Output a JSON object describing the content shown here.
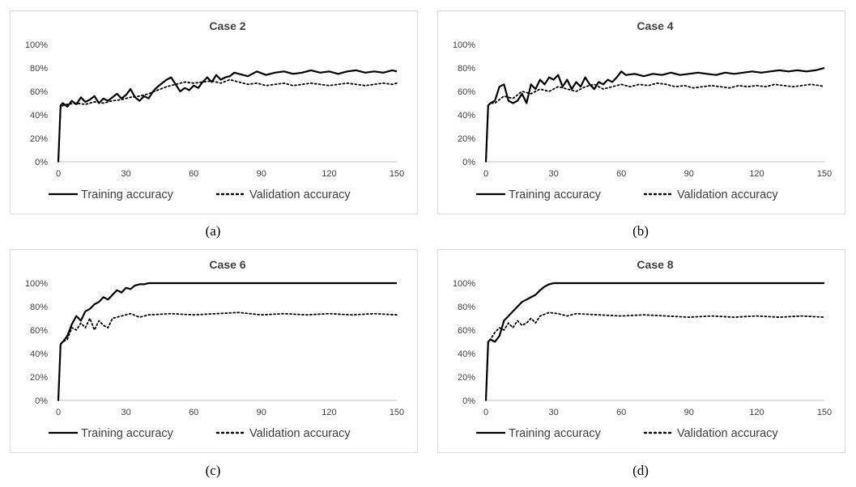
{
  "chart_data": [
    {
      "type": "line",
      "title": "Case 2",
      "caption": "(a)",
      "xlim": [
        0,
        150
      ],
      "ylim": [
        0,
        100
      ],
      "xticks": [
        0,
        30,
        60,
        90,
        120,
        150
      ],
      "yticks": [
        "0%",
        "20%",
        "40%",
        "60%",
        "80%",
        "100%"
      ],
      "legend_position": "bottom",
      "series": [
        {
          "name": "Training accuracy",
          "style": "solid",
          "x": [
            0,
            1,
            2,
            4,
            6,
            8,
            10,
            12,
            14,
            16,
            18,
            20,
            22,
            24,
            26,
            28,
            30,
            32,
            34,
            36,
            38,
            40,
            42,
            44,
            46,
            48,
            50,
            52,
            54,
            56,
            58,
            60,
            62,
            64,
            66,
            68,
            70,
            72,
            74,
            76,
            78,
            80,
            84,
            88,
            92,
            96,
            100,
            104,
            108,
            112,
            116,
            120,
            124,
            128,
            132,
            136,
            140,
            144,
            148,
            150
          ],
          "y": [
            0,
            48,
            50,
            47,
            52,
            49,
            55,
            51,
            53,
            56,
            50,
            54,
            52,
            55,
            58,
            54,
            57,
            62,
            55,
            52,
            56,
            54,
            60,
            64,
            67,
            70,
            72,
            66,
            60,
            63,
            61,
            65,
            63,
            68,
            72,
            68,
            74,
            70,
            72,
            73,
            76,
            75,
            73,
            77,
            74,
            76,
            77,
            75,
            76,
            78,
            76,
            77,
            75,
            77,
            78,
            76,
            77,
            76,
            78,
            77
          ]
        },
        {
          "name": "Validation accuracy",
          "style": "dotted",
          "x": [
            0,
            1,
            2,
            4,
            8,
            12,
            16,
            20,
            24,
            28,
            32,
            36,
            40,
            44,
            48,
            52,
            56,
            60,
            64,
            68,
            72,
            76,
            80,
            84,
            88,
            92,
            96,
            100,
            104,
            108,
            112,
            116,
            120,
            124,
            128,
            132,
            136,
            140,
            144,
            148,
            150
          ],
          "y": [
            0,
            46,
            48,
            49,
            50,
            49,
            51,
            50,
            52,
            53,
            55,
            56,
            58,
            61,
            64,
            66,
            68,
            67,
            68,
            69,
            67,
            70,
            68,
            66,
            67,
            65,
            66,
            67,
            65,
            66,
            67,
            66,
            65,
            66,
            67,
            66,
            65,
            66,
            67,
            66,
            67
          ]
        }
      ]
    },
    {
      "type": "line",
      "title": "Case 4",
      "caption": "(b)",
      "xlim": [
        0,
        150
      ],
      "ylim": [
        0,
        100
      ],
      "xticks": [
        0,
        30,
        60,
        90,
        120,
        150
      ],
      "yticks": [
        "0%",
        "20%",
        "40%",
        "60%",
        "80%",
        "100%"
      ],
      "legend_position": "bottom",
      "series": [
        {
          "name": "Training accuracy",
          "style": "solid",
          "x": [
            0,
            1,
            2,
            4,
            6,
            8,
            10,
            12,
            14,
            16,
            18,
            20,
            22,
            24,
            26,
            28,
            30,
            32,
            34,
            36,
            38,
            40,
            42,
            44,
            46,
            48,
            50,
            52,
            54,
            56,
            58,
            60,
            62,
            66,
            70,
            74,
            78,
            82,
            86,
            90,
            94,
            98,
            102,
            106,
            110,
            114,
            118,
            122,
            126,
            130,
            134,
            138,
            142,
            146,
            150
          ],
          "y": [
            0,
            48,
            50,
            52,
            64,
            66,
            52,
            50,
            52,
            58,
            50,
            66,
            62,
            70,
            66,
            72,
            70,
            74,
            64,
            70,
            62,
            68,
            64,
            72,
            66,
            62,
            68,
            66,
            70,
            68,
            72,
            77,
            74,
            75,
            73,
            75,
            74,
            76,
            74,
            75,
            76,
            75,
            74,
            76,
            75,
            76,
            77,
            76,
            77,
            78,
            77,
            78,
            77,
            78,
            80
          ]
        },
        {
          "name": "Validation accuracy",
          "style": "dotted",
          "x": [
            0,
            1,
            2,
            4,
            8,
            12,
            16,
            20,
            24,
            28,
            32,
            36,
            40,
            44,
            48,
            52,
            56,
            60,
            64,
            68,
            72,
            76,
            80,
            84,
            88,
            92,
            96,
            100,
            104,
            108,
            112,
            116,
            120,
            124,
            128,
            132,
            136,
            140,
            144,
            148,
            150
          ],
          "y": [
            0,
            48,
            50,
            50,
            56,
            54,
            60,
            58,
            62,
            60,
            64,
            62,
            60,
            64,
            66,
            62,
            64,
            66,
            64,
            66,
            65,
            67,
            66,
            64,
            65,
            63,
            64,
            65,
            64,
            63,
            65,
            64,
            65,
            64,
            66,
            65,
            64,
            65,
            66,
            65,
            64
          ]
        }
      ]
    },
    {
      "type": "line",
      "title": "Case 6",
      "caption": "(c)",
      "xlim": [
        0,
        150
      ],
      "ylim": [
        0,
        100
      ],
      "xticks": [
        0,
        30,
        60,
        90,
        120,
        150
      ],
      "yticks": [
        "0%",
        "20%",
        "40%",
        "60%",
        "80%",
        "100%"
      ],
      "legend_position": "bottom",
      "series": [
        {
          "name": "Training accuracy",
          "style": "solid",
          "x": [
            0,
            1,
            2,
            4,
            6,
            8,
            10,
            12,
            14,
            16,
            18,
            20,
            22,
            24,
            26,
            28,
            30,
            32,
            34,
            36,
            38,
            40,
            150
          ],
          "y": [
            0,
            48,
            50,
            55,
            65,
            72,
            68,
            76,
            78,
            82,
            84,
            88,
            86,
            90,
            94,
            92,
            96,
            95,
            98,
            99,
            99,
            100,
            100
          ]
        },
        {
          "name": "Validation accuracy",
          "style": "dotted",
          "x": [
            0,
            1,
            2,
            4,
            6,
            8,
            10,
            12,
            14,
            16,
            18,
            20,
            22,
            24,
            28,
            32,
            36,
            40,
            50,
            60,
            70,
            80,
            90,
            100,
            110,
            120,
            130,
            140,
            150
          ],
          "y": [
            0,
            48,
            50,
            52,
            62,
            60,
            66,
            62,
            70,
            60,
            68,
            64,
            62,
            70,
            72,
            74,
            71,
            73,
            74,
            73,
            74,
            75,
            73,
            74,
            73,
            74,
            73,
            74,
            73
          ]
        }
      ]
    },
    {
      "type": "line",
      "title": "Case 8",
      "caption": "(d)",
      "xlim": [
        0,
        150
      ],
      "ylim": [
        0,
        100
      ],
      "xticks": [
        0,
        30,
        60,
        90,
        120,
        150
      ],
      "yticks": [
        "0%",
        "20%",
        "40%",
        "60%",
        "80%",
        "100%"
      ],
      "legend_position": "bottom",
      "series": [
        {
          "name": "Training accuracy",
          "style": "solid",
          "x": [
            0,
            1,
            2,
            4,
            6,
            8,
            10,
            12,
            14,
            16,
            18,
            20,
            22,
            24,
            26,
            28,
            30,
            150
          ],
          "y": [
            0,
            50,
            52,
            50,
            55,
            68,
            72,
            76,
            80,
            84,
            86,
            88,
            90,
            94,
            97,
            99,
            100,
            100
          ]
        },
        {
          "name": "Validation accuracy",
          "style": "dotted",
          "x": [
            0,
            1,
            2,
            4,
            6,
            8,
            10,
            12,
            14,
            16,
            18,
            20,
            22,
            24,
            28,
            32,
            36,
            40,
            50,
            60,
            70,
            80,
            90,
            100,
            110,
            120,
            130,
            140,
            150
          ],
          "y": [
            0,
            50,
            52,
            58,
            62,
            60,
            66,
            62,
            68,
            64,
            66,
            70,
            66,
            72,
            75,
            74,
            72,
            74,
            73,
            72,
            73,
            72,
            71,
            72,
            71,
            72,
            71,
            72,
            71
          ]
        }
      ]
    }
  ]
}
